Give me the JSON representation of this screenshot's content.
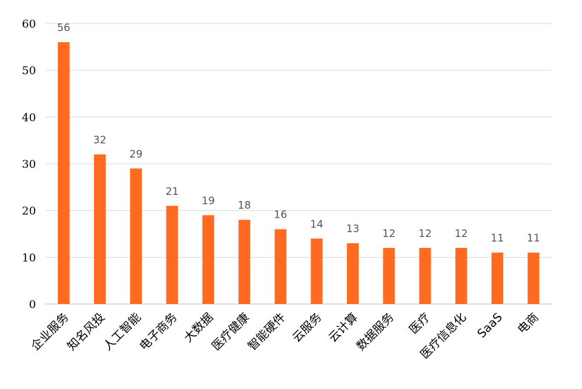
{
  "chart_data": {
    "type": "bar",
    "categories": [
      "企业服务",
      "知名风投",
      "人工智能",
      "电子商务",
      "大数据",
      "医疗健康",
      "智能硬件",
      "云服务",
      "云计算",
      "数据服务",
      "医疗",
      "医疗信息化",
      "SaaS",
      "电商"
    ],
    "values": [
      56,
      32,
      29,
      21,
      19,
      18,
      16,
      14,
      13,
      12,
      12,
      12,
      11,
      11
    ],
    "ylim": [
      0,
      60
    ],
    "yticks": [
      0,
      10,
      20,
      30,
      40,
      50,
      60
    ],
    "grid": true,
    "data_labels": true,
    "bar_color": "#FF6A21",
    "gridline_color": "#D9D9D9",
    "axis_color": "#BFBFBF"
  }
}
